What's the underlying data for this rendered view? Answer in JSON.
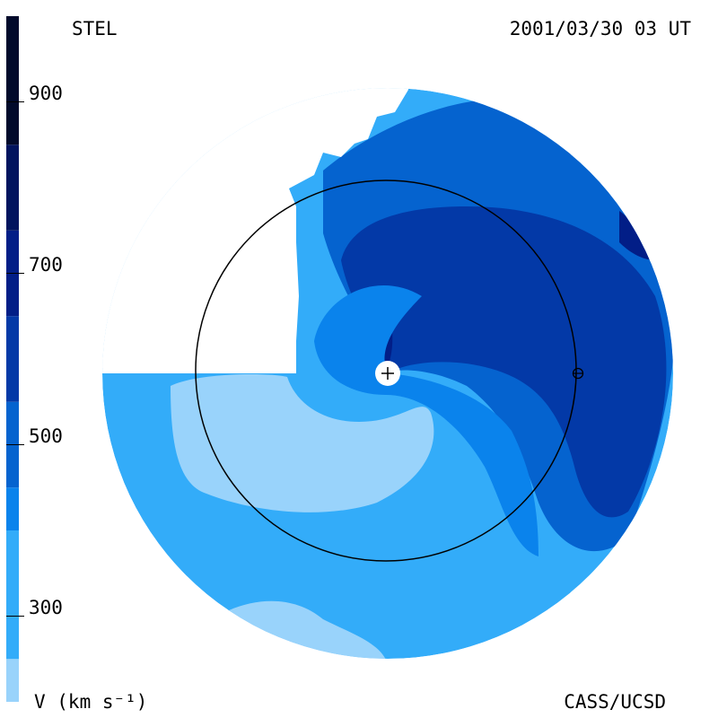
{
  "header": {
    "instrument": "STEL",
    "timestamp": "2001/03/30 03 UT"
  },
  "footer": {
    "units": "V (km s⁻¹)",
    "credit": "CASS/UCSD"
  },
  "chart_data": {
    "type": "heatmap",
    "title": "",
    "colorbar": {
      "label": "V (km s⁻¹)",
      "ticks": [
        300,
        500,
        700,
        900
      ],
      "range": [
        200,
        1000
      ],
      "bins": [
        {
          "min": 200,
          "max": 250,
          "color": "#99d3fb"
        },
        {
          "min": 250,
          "max": 400,
          "color": "#33acf9"
        },
        {
          "min": 400,
          "max": 450,
          "color": "#0a83ec"
        },
        {
          "min": 450,
          "max": 550,
          "color": "#0563cf"
        },
        {
          "min": 550,
          "max": 650,
          "color": "#0339a7"
        },
        {
          "min": 650,
          "max": 750,
          "color": "#021e87"
        },
        {
          "min": 750,
          "max": 850,
          "color": "#01145e"
        },
        {
          "min": 850,
          "max": 1000,
          "color": "#010a2b"
        }
      ]
    },
    "markers": [
      {
        "name": "Sun",
        "symbol": "+"
      },
      {
        "name": "Earth",
        "symbol": "⊕"
      }
    ],
    "reference_circle": "Earth orbit (1 AU)"
  }
}
